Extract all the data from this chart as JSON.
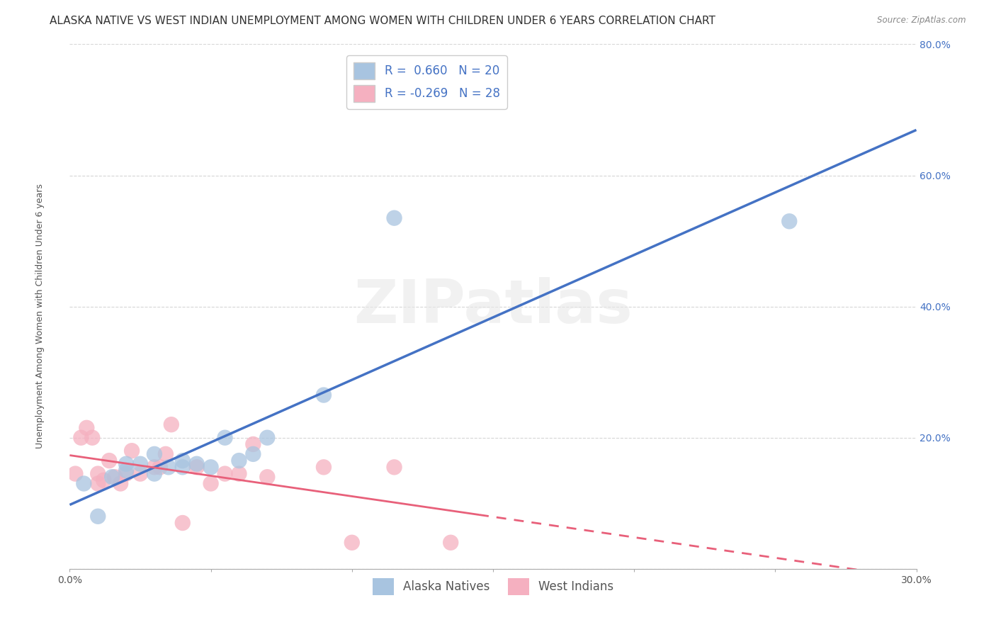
{
  "title": "ALASKA NATIVE VS WEST INDIAN UNEMPLOYMENT AMONG WOMEN WITH CHILDREN UNDER 6 YEARS CORRELATION CHART",
  "source": "Source: ZipAtlas.com",
  "ylabel": "Unemployment Among Women with Children Under 6 years",
  "legend_alaska": "Alaska Natives",
  "legend_west": "West Indians",
  "r_alaska": 0.66,
  "n_alaska": 20,
  "r_west": -0.269,
  "n_west": 28,
  "xlim": [
    0.0,
    0.3
  ],
  "ylim": [
    0.0,
    0.8
  ],
  "xticks": [
    0.0,
    0.05,
    0.1,
    0.15,
    0.2,
    0.25,
    0.3
  ],
  "xtick_labels": [
    "0.0%",
    "",
    "",
    "",
    "",
    "",
    "30.0%"
  ],
  "yticks": [
    0.0,
    0.2,
    0.4,
    0.6,
    0.8
  ],
  "ytick_labels": [
    "",
    "20.0%",
    "40.0%",
    "60.0%",
    "80.0%"
  ],
  "alaska_color": "#a8c4e0",
  "west_color": "#f5b0c0",
  "alaska_line_color": "#4472c4",
  "west_line_color": "#e8607a",
  "background_color": "#ffffff",
  "alaska_x": [
    0.005,
    0.01,
    0.015,
    0.02,
    0.02,
    0.025,
    0.03,
    0.03,
    0.035,
    0.04,
    0.04,
    0.045,
    0.05,
    0.055,
    0.06,
    0.065,
    0.07,
    0.09,
    0.115,
    0.255
  ],
  "alaska_y": [
    0.13,
    0.08,
    0.14,
    0.15,
    0.16,
    0.16,
    0.145,
    0.175,
    0.155,
    0.155,
    0.165,
    0.16,
    0.155,
    0.2,
    0.165,
    0.175,
    0.2,
    0.265,
    0.535,
    0.53
  ],
  "west_x": [
    0.002,
    0.004,
    0.006,
    0.008,
    0.01,
    0.01,
    0.012,
    0.014,
    0.016,
    0.018,
    0.02,
    0.022,
    0.025,
    0.03,
    0.032,
    0.034,
    0.036,
    0.04,
    0.045,
    0.05,
    0.055,
    0.06,
    0.065,
    0.07,
    0.09,
    0.1,
    0.115,
    0.135
  ],
  "west_y": [
    0.145,
    0.2,
    0.215,
    0.2,
    0.13,
    0.145,
    0.135,
    0.165,
    0.14,
    0.13,
    0.145,
    0.18,
    0.145,
    0.155,
    0.155,
    0.175,
    0.22,
    0.07,
    0.155,
    0.13,
    0.145,
    0.145,
    0.19,
    0.14,
    0.155,
    0.04,
    0.155,
    0.04
  ],
  "title_fontsize": 11,
  "axis_fontsize": 9,
  "tick_fontsize": 10,
  "legend_fontsize": 12,
  "watermark_text": "ZIPatlas",
  "watermark_color": "#e8e8e8"
}
